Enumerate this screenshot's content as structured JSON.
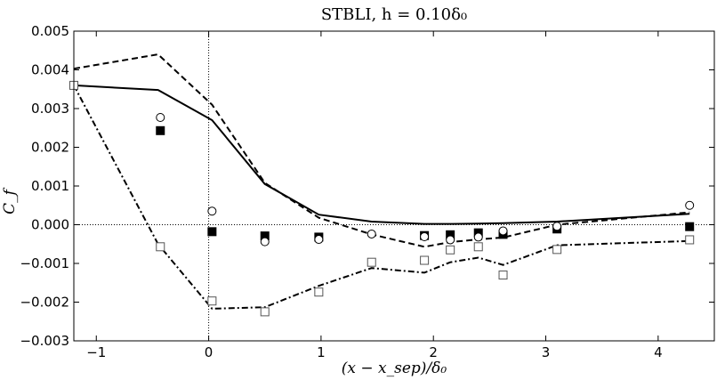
{
  "chart_data": {
    "type": "line",
    "title": "STBLI, h = 0.10δ₀",
    "xlabel": "(x − x_sep)/δ₀",
    "ylabel": "C_f",
    "xlim": [
      -1.2,
      4.5
    ],
    "ylim": [
      -0.003,
      0.005
    ],
    "xticks": [
      -1,
      0,
      1,
      2,
      3,
      4
    ],
    "xtick_labels": [
      "−1",
      "0",
      "1",
      "2",
      "3",
      "4"
    ],
    "yticks": [
      -0.003,
      -0.002,
      -0.001,
      0.0,
      0.001,
      0.002,
      0.003,
      0.004,
      0.005
    ],
    "ytick_labels": [
      "−0.003",
      "−0.002",
      "−0.001",
      "0.000",
      "0.001",
      "0.002",
      "0.003",
      "0.004",
      "0.005"
    ],
    "reference_lines": {
      "vertical_x": 0,
      "horizontal_y": 0
    },
    "series": [
      {
        "name": "solid-line",
        "style": "solid",
        "kind": "line",
        "x": [
          -1.2,
          -0.45,
          0.03,
          0.5,
          0.98,
          1.45,
          1.92,
          2.15,
          2.4,
          2.62,
          3.1,
          4.28
        ],
        "y": [
          0.0036,
          0.00348,
          0.0027,
          0.00105,
          0.00026,
          8e-05,
          2e-05,
          2e-05,
          3e-05,
          4e-05,
          8e-05,
          0.00028
        ]
      },
      {
        "name": "dashed-line",
        "style": "dashed",
        "kind": "line",
        "x": [
          -1.2,
          -0.45,
          0.03,
          0.5,
          0.98,
          1.45,
          1.92,
          2.15,
          2.4,
          2.62,
          3.1,
          4.28
        ],
        "y": [
          0.00403,
          0.0044,
          0.0031,
          0.00108,
          0.00018,
          -0.00025,
          -0.00057,
          -0.00045,
          -0.00038,
          -0.00033,
          0.0,
          0.00032
        ]
      },
      {
        "name": "dash-dot-line",
        "style": "dashdot",
        "kind": "line",
        "x": [
          -1.2,
          -0.45,
          0.03,
          0.5,
          0.98,
          1.45,
          1.92,
          2.15,
          2.4,
          2.62,
          3.1,
          4.28
        ],
        "y": [
          0.0036,
          -0.0005,
          -0.00217,
          -0.00213,
          -0.00158,
          -0.00112,
          -0.00124,
          -0.00097,
          -0.00085,
          -0.00104,
          -0.00053,
          -0.00042
        ]
      },
      {
        "name": "filled-squares",
        "kind": "marker",
        "marker": "filled-square",
        "x": [
          -0.43,
          0.03,
          0.5,
          0.98,
          1.92,
          2.15,
          2.4,
          2.62,
          3.1,
          4.28
        ],
        "y": [
          0.00243,
          -0.00018,
          -0.00029,
          -0.00032,
          -0.00028,
          -0.00026,
          -0.00021,
          -0.00025,
          -0.00011,
          -5e-05
        ]
      },
      {
        "name": "open-circles",
        "kind": "marker",
        "marker": "open-circle",
        "x": [
          -1.2,
          -0.43,
          0.03,
          0.5,
          0.98,
          1.45,
          1.92,
          2.15,
          2.4,
          2.62,
          3.1,
          4.28
        ],
        "y": [
          0.0036,
          0.00277,
          0.00035,
          -0.00044,
          -0.00038,
          -0.00024,
          -0.00031,
          -0.00039,
          -0.00032,
          -0.00016,
          -4e-05,
          0.0005
        ]
      },
      {
        "name": "open-squares",
        "kind": "marker",
        "marker": "open-square",
        "x": [
          -1.2,
          -0.43,
          0.03,
          0.5,
          0.98,
          1.45,
          1.92,
          2.15,
          2.4,
          2.62,
          3.1,
          4.28
        ],
        "y": [
          0.0036,
          -0.00057,
          -0.00197,
          -0.00225,
          -0.00174,
          -0.00097,
          -0.00092,
          -0.00065,
          -0.00057,
          -0.0013,
          -0.00064,
          -0.00039
        ]
      }
    ]
  }
}
